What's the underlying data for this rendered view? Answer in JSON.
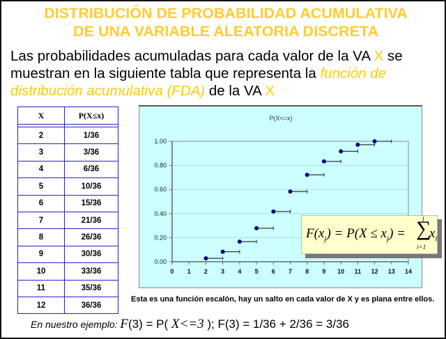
{
  "title": {
    "line1": "DISTRIBUCIÓN DE PROBABILIDAD ACUMULATIVA",
    "line2": "DE UNA VARIABLE ALEATORIA DISCRETA",
    "color": "#FFCC33"
  },
  "intro": {
    "part1": "Las probabilidades acumuladas para cada valor de la VA ",
    "var1": "X",
    "part2": " se muestran en la siguiente tabla que representa la ",
    "term": "función de distribución acumulativa (FDA)",
    "part3": " de la VA ",
    "var2": "X"
  },
  "table": {
    "headers": [
      "X",
      "P(X≤x)"
    ],
    "rows": [
      {
        "x": "2",
        "p": "1/36"
      },
      {
        "x": "3",
        "p": "3/36"
      },
      {
        "x": "4",
        "p": "6/36"
      },
      {
        "x": "5",
        "p": "10/36"
      },
      {
        "x": "6",
        "p": "15/36"
      },
      {
        "x": "7",
        "p": "21/36"
      },
      {
        "x": "8",
        "p": "26/36"
      },
      {
        "x": "9",
        "p": "30/36"
      },
      {
        "x": "10",
        "p": "33/36"
      },
      {
        "x": "11",
        "p": "35/36"
      },
      {
        "x": "12",
        "p": "36/36"
      }
    ],
    "border_color": "#2222CC"
  },
  "chart_data": {
    "type": "scatter",
    "title": "P(X<=x)",
    "xlabel": "",
    "ylabel": "",
    "x": [
      2,
      3,
      4,
      5,
      6,
      7,
      8,
      9,
      10,
      11,
      12
    ],
    "values": [
      0.028,
      0.083,
      0.167,
      0.278,
      0.417,
      0.583,
      0.722,
      0.833,
      0.917,
      0.972,
      1.0
    ],
    "step_segments": true,
    "xlim": [
      0,
      14
    ],
    "ylim": [
      0,
      1.0
    ],
    "xticks": [
      "0",
      "1",
      "2",
      "3",
      "4",
      "5",
      "6",
      "7",
      "8",
      "9",
      "10",
      "11",
      "12",
      "13",
      "14"
    ],
    "yticks": [
      "0.00",
      "0.20",
      "0.40",
      "0.60",
      "0.80",
      "1.00"
    ],
    "grid": "horizontal",
    "legend": "none",
    "background": "#CCFFFF",
    "marker_color": "#000080"
  },
  "formula": {
    "lhs": "F(x",
    "sub_j": "j",
    "mid": ") = P(X ≤ x",
    "end": ") =",
    "sigma": "∑",
    "upper": "j",
    "lower": "i=1",
    "term": "x",
    "sub_i": "i"
  },
  "note": "Esta es una función escalón, hay un salto en cada valor de X y es plana entre ellos.",
  "example": {
    "label": "En nuestro ejemplo: ",
    "f": "F",
    "part1": "(3) = P( ",
    "xvar": "X<=3",
    "part2": " ); F(3) = 1/36 + 2/36 = 3/36"
  }
}
